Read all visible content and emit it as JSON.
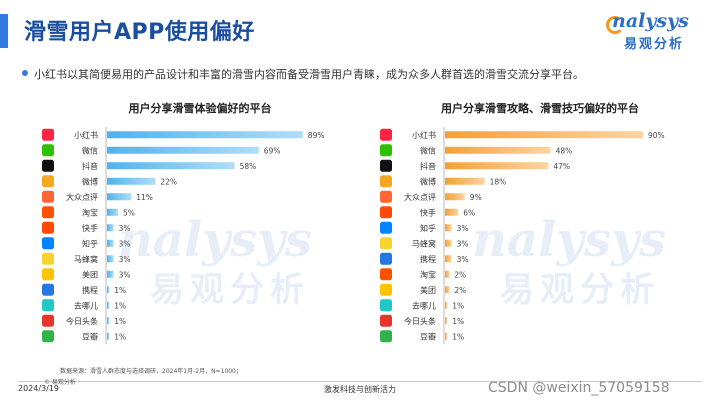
{
  "header": {
    "title": "滑雪用户APP使用偏好"
  },
  "logo": {
    "en": "nalysys",
    "cn": "易观分析"
  },
  "summary": "小红书以其简便易用的产品设计和丰富的滑雪内容而备受滑雪用户青睐，成为众多人群首选的滑雪交流分享平台。",
  "footer": {
    "source": "数据来源：滑雪人群态度与选择调研，2024年1月-2月，N=1000；",
    "copyright": "© 易观分析",
    "date": "2024/3/19",
    "slogan": "激发科技与创新活力",
    "watermark": "CSDN @weixin_57059158"
  },
  "colors": {
    "left_bar": "#4fb3ee",
    "right_bar": "#f7a032",
    "accent": "#2f7be0"
  },
  "chart_data": [
    {
      "type": "bar",
      "orientation": "horizontal",
      "title": "用户分享滑雪体验偏好的平台",
      "categories": [
        "小红书",
        "微信",
        "抖音",
        "微博",
        "大众点评",
        "淘宝",
        "快手",
        "知乎",
        "马蜂窝",
        "美团",
        "携程",
        "去哪儿",
        "今日头条",
        "豆瓣"
      ],
      "values": [
        89,
        69,
        58,
        22,
        11,
        5,
        3,
        3,
        3,
        3,
        1,
        1,
        1,
        1
      ],
      "value_suffix": "%",
      "xlim": [
        0,
        100
      ],
      "bar_color": "#4fb3ee",
      "icon_colors": [
        "#ff2442",
        "#2dc100",
        "#111111",
        "#f5a623",
        "#ff6633",
        "#ff5000",
        "#ff4906",
        "#0084ff",
        "#f6d32d",
        "#ffc300",
        "#2577e3",
        "#1fc7c7",
        "#e8352c",
        "#2fb34a"
      ]
    },
    {
      "type": "bar",
      "orientation": "horizontal",
      "title": "用户分享滑雪攻略、滑雪技巧偏好的平台",
      "categories": [
        "小红书",
        "微信",
        "抖音",
        "微博",
        "大众点评",
        "快手",
        "知乎",
        "马蜂窝",
        "携程",
        "淘宝",
        "美团",
        "去哪儿",
        "今日头条",
        "豆瓣"
      ],
      "values": [
        90,
        48,
        47,
        18,
        9,
        6,
        3,
        3,
        3,
        2,
        2,
        1,
        1,
        1
      ],
      "value_suffix": "%",
      "xlim": [
        0,
        100
      ],
      "bar_color": "#f7a032",
      "icon_colors": [
        "#ff2442",
        "#2dc100",
        "#111111",
        "#f5a623",
        "#ff6633",
        "#ff4906",
        "#0084ff",
        "#f6d32d",
        "#2577e3",
        "#ff5000",
        "#ffc300",
        "#1fc7c7",
        "#e8352c",
        "#2fb34a"
      ]
    }
  ]
}
